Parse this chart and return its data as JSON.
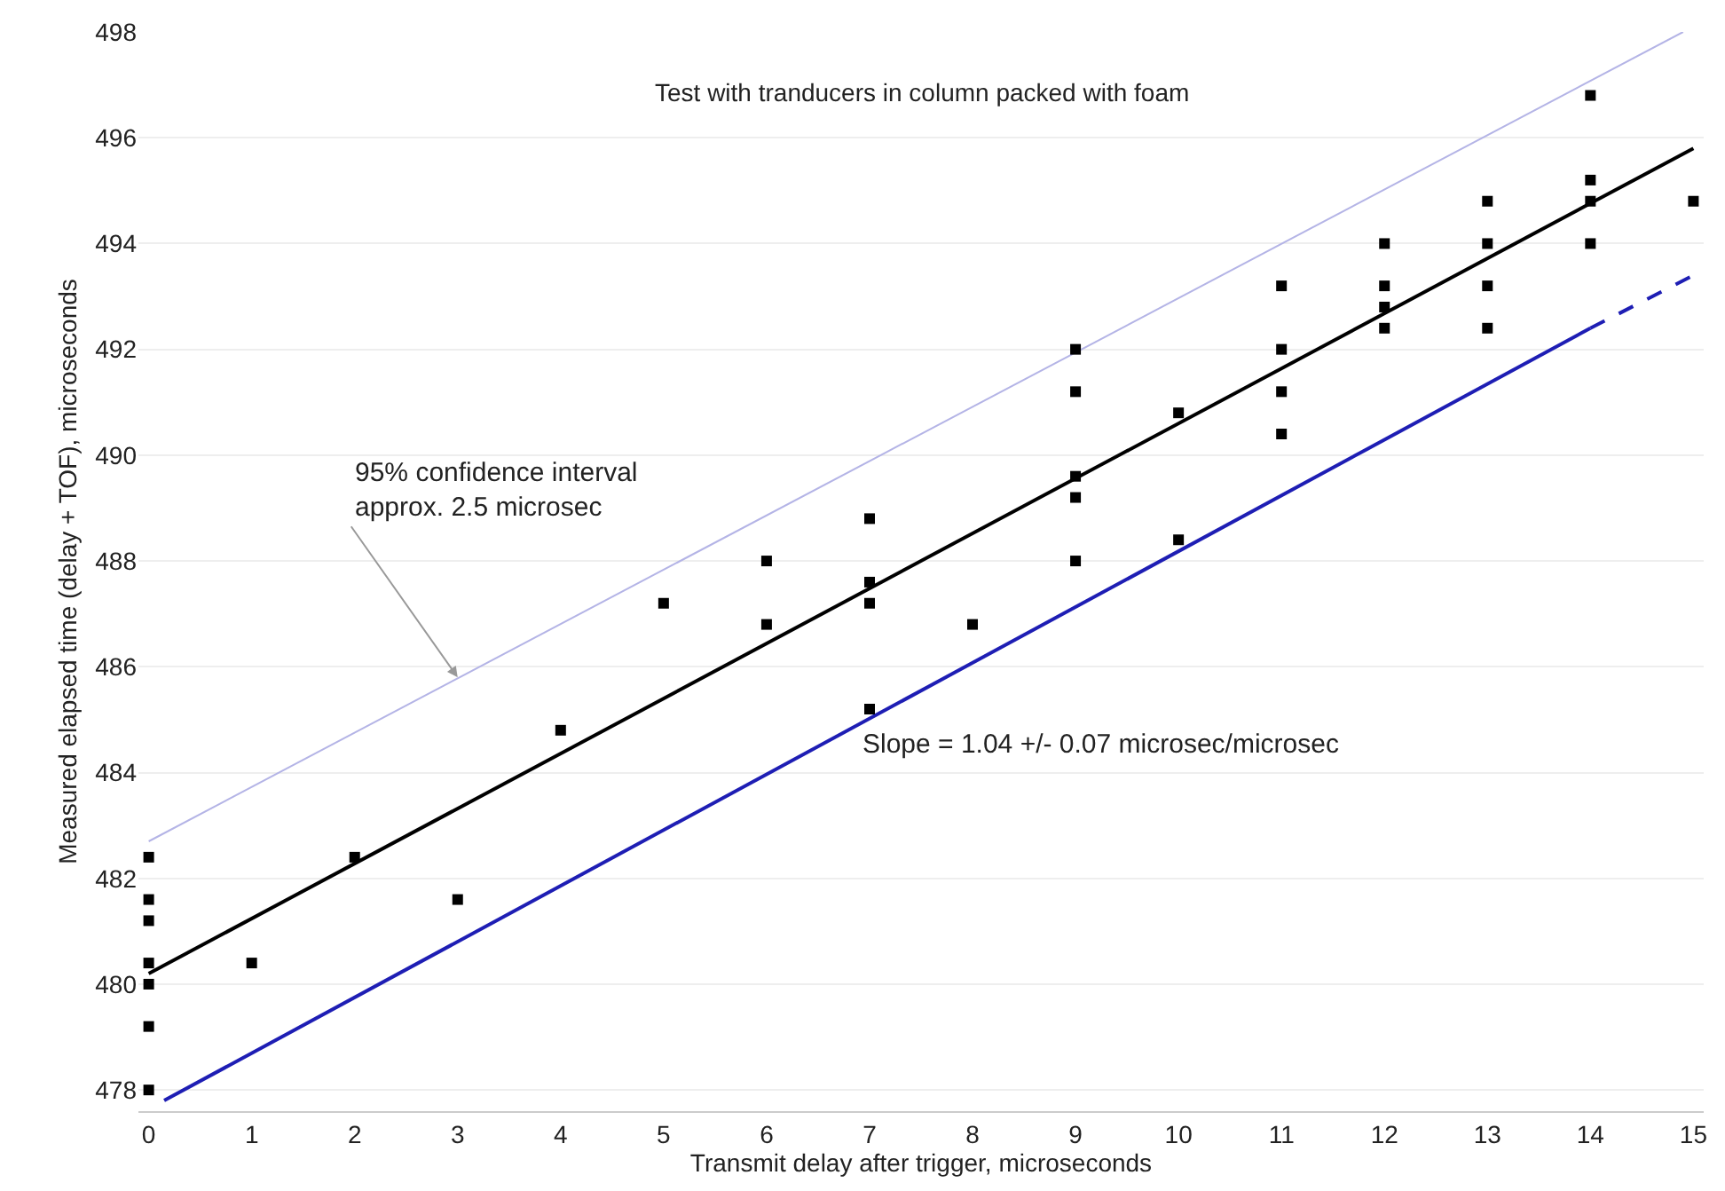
{
  "chart_data": {
    "type": "scatter",
    "title": "Test with tranducers in column packed with foam",
    "xlabel": "Transmit delay after trigger, microseconds",
    "ylabel": "Measured elapsed time (delay + TOF), microseconds",
    "xlim": [
      -0.1,
      15.1
    ],
    "xticks": [
      0,
      1,
      2,
      3,
      4,
      5,
      6,
      7,
      8,
      9,
      10,
      11,
      12,
      13,
      14,
      15
    ],
    "ylim": [
      477.6,
      498
    ],
    "yticks": [
      478,
      480,
      482,
      484,
      486,
      488,
      490,
      492,
      494,
      496,
      498
    ],
    "grid": "y",
    "series": [
      {
        "type": "line",
        "color": "#b4b4e6",
        "x": [
          0,
          14.9
        ],
        "values": [
          482.7,
          498
        ],
        "line_style": "solid"
      },
      {
        "type": "line",
        "color": "#1e1eb4",
        "x": [
          0.15,
          14
        ],
        "values": [
          477.8,
          492.4
        ],
        "line_style": "solid"
      },
      {
        "type": "line",
        "color": "#1e1eb4",
        "x": [
          14,
          15
        ],
        "values": [
          492.4,
          493.4
        ],
        "line_style": "dashed"
      },
      {
        "type": "line",
        "color": "#000000",
        "x": [
          0,
          15
        ],
        "values": [
          480.2,
          495.8
        ],
        "line_style": "solid"
      },
      {
        "color": "#000000",
        "marker": "square",
        "x": [
          0,
          0,
          0,
          0,
          0,
          0,
          0,
          1,
          2,
          3,
          4,
          5,
          6,
          6,
          7,
          7,
          7,
          7,
          8,
          9,
          9,
          9,
          9,
          9,
          10,
          10,
          11,
          11,
          11,
          11,
          12,
          12,
          12,
          12,
          13,
          13,
          13,
          13,
          14,
          14,
          14,
          14,
          15
        ],
        "values": [
          482.4,
          481.6,
          481.2,
          480.4,
          480.0,
          479.2,
          478.0,
          480.4,
          482.4,
          481.6,
          484.8,
          487.2,
          488.0,
          486.8,
          488.8,
          487.6,
          487.2,
          485.2,
          486.8,
          492.0,
          491.2,
          489.6,
          489.2,
          488.0,
          490.8,
          488.4,
          493.2,
          492.0,
          491.2,
          490.4,
          494.0,
          493.2,
          492.8,
          492.4,
          494.8,
          494.0,
          493.2,
          492.4,
          496.8,
          495.2,
          494.8,
          494.0,
          494.8
        ]
      }
    ],
    "annotations": [
      {
        "text": "95% confidence interval\napprox. 2.5 microsec",
        "x": 3,
        "y": 485.8
      },
      "Slope = 1.04 +/- 0.07 microsec/microsec"
    ]
  }
}
